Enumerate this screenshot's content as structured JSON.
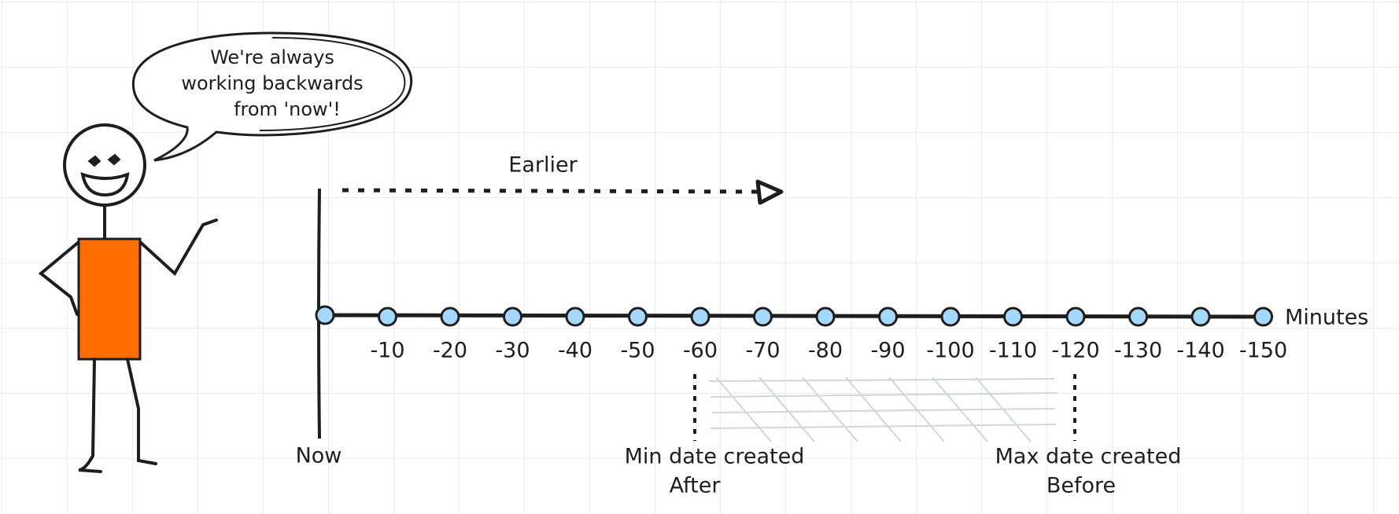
{
  "speech_bubble": {
    "lines": [
      "We're always",
      "working backwards",
      "from 'now'!"
    ]
  },
  "direction_label": "Earlier",
  "origin_label": "Now",
  "axis": {
    "unit_label": "Minutes",
    "ticks": [
      -10,
      -20,
      -30,
      -40,
      -50,
      -60,
      -70,
      -80,
      -90,
      -100,
      -110,
      -120,
      -130,
      -140,
      -150
    ]
  },
  "range": {
    "min": {
      "title": "Min date created",
      "subtitle": "After"
    },
    "max": {
      "title": "Max date created",
      "subtitle": "Before"
    }
  }
}
